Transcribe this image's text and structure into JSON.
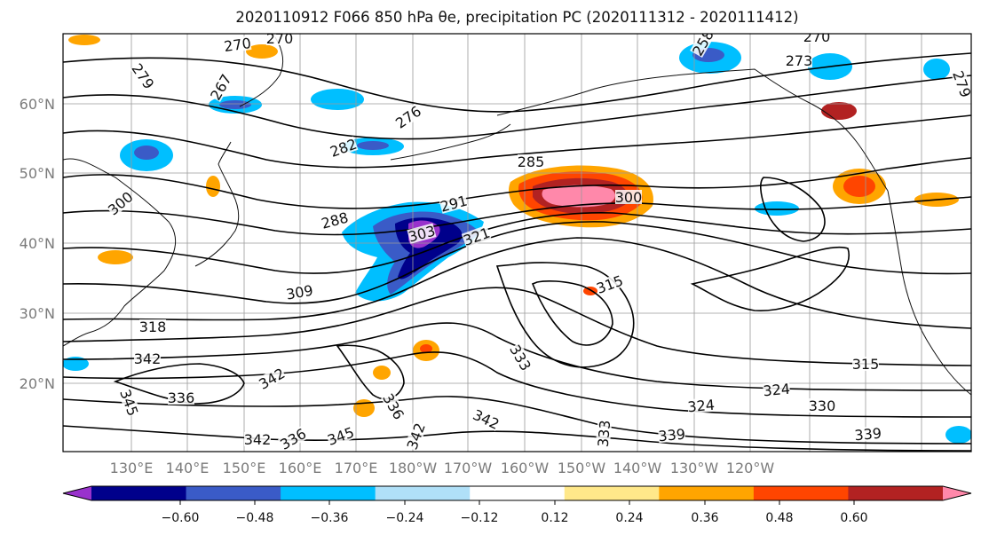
{
  "title": "2020110912 F066 850 hPa θe, precipitation PC (2020111312 - 2020111412)",
  "lat_labels": [
    "20°N",
    "30°N",
    "40°N",
    "50°N",
    "60°N"
  ],
  "lon_labels": [
    "130°E",
    "140°E",
    "150°E",
    "160°E",
    "170°E",
    "180°W",
    "170°W",
    "160°W",
    "150°W",
    "140°W",
    "130°W",
    "120°W"
  ],
  "colorbar": {
    "colors": [
      "#9932cc",
      "#00008b",
      "#3a5bc7",
      "#00bfff",
      "#b0e0f8",
      "#ffffff",
      "#ffe88a",
      "#ffa500",
      "#ff4500",
      "#b22222",
      "#ff88aa"
    ],
    "ticks": [
      "−0.60",
      "−0.48",
      "−0.36",
      "−0.24",
      "−0.12",
      "0.12",
      "0.24",
      "0.36",
      "0.48",
      "0.60"
    ]
  },
  "contour_labels": [
    {
      "text": "270"
    },
    {
      "text": "270"
    },
    {
      "text": "279"
    },
    {
      "text": "267"
    },
    {
      "text": "276"
    },
    {
      "text": "282"
    },
    {
      "text": "285"
    },
    {
      "text": "288"
    },
    {
      "text": "291"
    },
    {
      "text": "300"
    },
    {
      "text": "300"
    },
    {
      "text": "303"
    },
    {
      "text": "321"
    },
    {
      "text": "309"
    },
    {
      "text": "315"
    },
    {
      "text": "318"
    },
    {
      "text": "342"
    },
    {
      "text": "336"
    },
    {
      "text": "345"
    },
    {
      "text": "342"
    },
    {
      "text": "336"
    },
    {
      "text": "333"
    },
    {
      "text": "324"
    },
    {
      "text": "324"
    },
    {
      "text": "330"
    },
    {
      "text": "315"
    },
    {
      "text": "339"
    },
    {
      "text": "342"
    },
    {
      "text": "336"
    },
    {
      "text": "342"
    },
    {
      "text": "345"
    },
    {
      "text": "342"
    },
    {
      "text": "339"
    },
    {
      "text": "333"
    },
    {
      "text": "270"
    },
    {
      "text": "279"
    },
    {
      "text": "258"
    },
    {
      "text": "273"
    }
  ]
}
